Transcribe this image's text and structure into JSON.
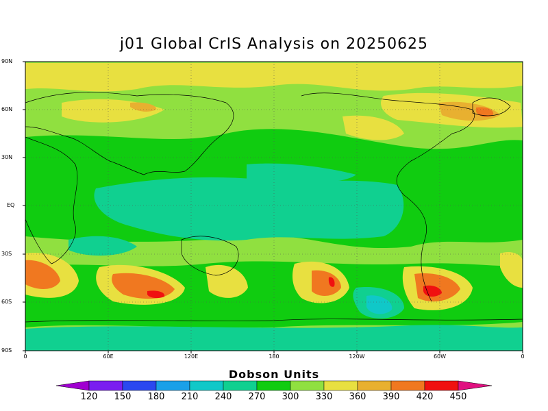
{
  "title": "j01 Global CrIS Analysis on 20250625",
  "lat_labels": [
    "90N",
    "60N",
    "30N",
    "EQ",
    "30S",
    "60S",
    "90S"
  ],
  "lon_labels": [
    "0",
    "60E",
    "120E",
    "180",
    "120W",
    "60W",
    "0"
  ],
  "colorbar": {
    "title": "Dobson Units",
    "ticks": [
      "120",
      "150",
      "180",
      "210",
      "240",
      "270",
      "300",
      "330",
      "360",
      "390",
      "420",
      "450"
    ],
    "colors": [
      "#a000d0",
      "#7a1ef0",
      "#2a48f0",
      "#1aa0e8",
      "#10c8c8",
      "#10d090",
      "#10cc10",
      "#90e040",
      "#e8e040",
      "#e8b030",
      "#f07820",
      "#f01010",
      "#e01080"
    ]
  },
  "chart_data": {
    "type": "heatmap",
    "title": "j01 Global CrIS Analysis on 20250625",
    "colorbar_label": "Dobson Units",
    "xlim": [
      0,
      360
    ],
    "ylim": [
      -90,
      90
    ],
    "grid": true,
    "levels": [
      120,
      150,
      180,
      210,
      240,
      270,
      300,
      330,
      360,
      390,
      420,
      450
    ]
  }
}
